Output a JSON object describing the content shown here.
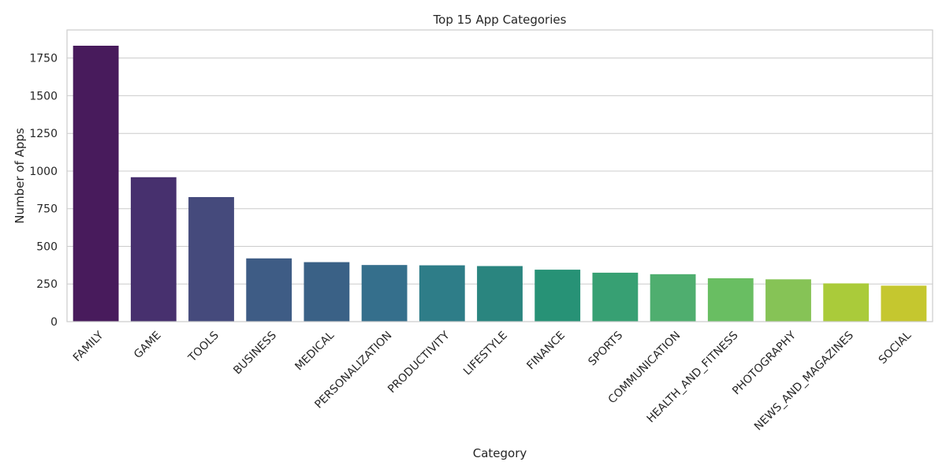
{
  "chart_data": {
    "type": "bar",
    "title": "Top 15 App Categories",
    "xlabel": "Category",
    "ylabel": "Number of Apps",
    "ylim": [
      0,
      1832
    ],
    "yticks": [
      0,
      250,
      500,
      750,
      1000,
      1250,
      1500,
      1750
    ],
    "grid": true,
    "categories": [
      "FAMILY",
      "GAME",
      "TOOLS",
      "BUSINESS",
      "MEDICAL",
      "PERSONALIZATION",
      "PRODUCTIVITY",
      "LIFESTYLE",
      "FINANCE",
      "SPORTS",
      "COMMUNICATION",
      "HEALTH_AND_FITNESS",
      "PHOTOGRAPHY",
      "NEWS_AND_MAGAZINES",
      "SOCIAL"
    ],
    "values": [
      1832,
      959,
      827,
      420,
      395,
      376,
      374,
      369,
      345,
      325,
      315,
      288,
      281,
      254,
      239
    ],
    "colors": [
      "#481b5c",
      "#47306e",
      "#454a7c",
      "#3e5c85",
      "#3a6186",
      "#356f8c",
      "#2e7d88",
      "#2a857f",
      "#279276",
      "#37a073",
      "#4fae6f",
      "#69be62",
      "#86c356",
      "#aacb3a",
      "#c5c72f"
    ]
  }
}
